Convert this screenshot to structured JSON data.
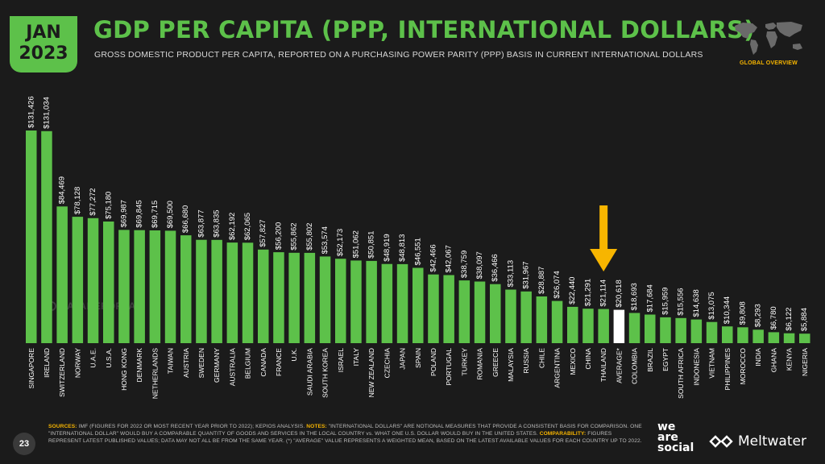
{
  "header": {
    "badge_month": "JAN",
    "badge_year": "2023",
    "title": "GDP PER CAPITA (PPP, INTERNATIONAL DOLLARS)",
    "subtitle": "GROSS DOMESTIC PRODUCT PER CAPITA, REPORTED ON A PURCHASING POWER PARITY (PPP) BASIS IN CURRENT INTERNATIONAL DOLLARS",
    "section_label": "GLOBAL OVERVIEW",
    "map_icon": "world-map-icon"
  },
  "watermark": "DATAREPORTAL",
  "colors": {
    "bar": "#5dc14a",
    "highlight_bar": "#ffffff",
    "arrow": "#f7b500",
    "accent": "#f7b500",
    "background": "#1b1b1b"
  },
  "chart_data": {
    "type": "bar",
    "categories": [
      "SINGAPORE",
      "IRELAND",
      "SWITZERLAND",
      "NORWAY",
      "U.A.E.",
      "U.S.A.",
      "HONG KONG",
      "DENMARK",
      "NETHERLANDS",
      "TAIWAN",
      "AUSTRIA",
      "SWEDEN",
      "GERMANY",
      "AUSTRALIA",
      "BELGIUM",
      "CANADA",
      "FRANCE",
      "U.K.",
      "SAUDI ARABIA",
      "SOUTH KOREA",
      "ISRAEL",
      "ITALY",
      "NEW ZEALAND",
      "CZECHIA",
      "JAPAN",
      "SPAIN",
      "POLAND",
      "PORTUGAL",
      "TURKEY",
      "ROMANIA",
      "GREECE",
      "MALAYSIA",
      "RUSSIA",
      "CHILE",
      "ARGENTINA",
      "MEXICO",
      "CHINA",
      "THAILAND",
      "AVERAGE*",
      "COLOMBIA",
      "BRAZIL",
      "EGYPT",
      "SOUTH AFRICA",
      "INDONESIA",
      "VIETNAM",
      "PHILIPPINES",
      "MOROCCO",
      "INDIA",
      "GHANA",
      "KENYA",
      "NIGERIA"
    ],
    "values": [
      131426,
      131034,
      84469,
      78128,
      77272,
      75180,
      69987,
      69845,
      69715,
      69500,
      66680,
      63877,
      63835,
      62192,
      62065,
      57827,
      56200,
      55862,
      55802,
      53574,
      52173,
      51062,
      50851,
      48919,
      48813,
      46551,
      42466,
      42067,
      38759,
      38097,
      36466,
      33113,
      31967,
      28887,
      26074,
      22440,
      21291,
      21114,
      20618,
      18693,
      17684,
      15959,
      15556,
      14638,
      13075,
      10344,
      9808,
      8293,
      6780,
      6122,
      5884
    ],
    "value_labels": [
      "$131,426",
      "$131,034",
      "$84,469",
      "$78,128",
      "$77,272",
      "$75,180",
      "$69,987",
      "$69,845",
      "$69,715",
      "$69,500",
      "$66,680",
      "$63,877",
      "$63,835",
      "$62,192",
      "$62,065",
      "$57,827",
      "$56,200",
      "$55,862",
      "$55,802",
      "$53,574",
      "$52,173",
      "$51,062",
      "$50,851",
      "$48,919",
      "$48,813",
      "$46,551",
      "$42,466",
      "$42,067",
      "$38,759",
      "$38,097",
      "$36,466",
      "$33,113",
      "$31,967",
      "$28,887",
      "$26,074",
      "$22,440",
      "$21,291",
      "$21,114",
      "$20,618",
      "$18,693",
      "$17,684",
      "$15,959",
      "$15,556",
      "$14,638",
      "$13,075",
      "$10,344",
      "$9,808",
      "$8,293",
      "$6,780",
      "$6,122",
      "$5,884"
    ],
    "highlight_category": "AVERAGE*",
    "arrow_category": "THAILAND",
    "title": "GDP PER CAPITA (PPP, INTERNATIONAL DOLLARS)",
    "xlabel": "",
    "ylabel": "",
    "grid": false
  },
  "footer": {
    "page_number": "23",
    "sources_key": "SOURCES:",
    "sources_text": " IMF (FIGURES FOR 2022 OR MOST RECENT YEAR PRIOR TO 2022); KEPIOS ANALYSIS. ",
    "notes_key": "NOTES:",
    "notes_text": " \"INTERNATIONAL DOLLARS\" ARE NOTIONAL MEASURES THAT PROVIDE A CONSISTENT BASIS FOR COMPARISON. ONE \"INTERNATIONAL DOLLAR\" WOULD BUY A COMPARABLE QUANTITY OF GOODS AND SERVICES IN THE LOCAL COUNTRY vs. WHAT ONE U.S. DOLLAR WOULD BUY IN THE UNITED STATES. ",
    "comparability_key": "COMPARABILITY:",
    "comparability_text": " FIGURES REPRESENT LATEST PUBLISHED VALUES; DATA MAY NOT ALL BE FROM THE SAME YEAR. (*) \"AVERAGE\" VALUE REPRESENTS A WEIGHTED MEAN, BASED ON THE LATEST AVAILABLE VALUES FOR EACH COUNTRY UP TO 2022."
  },
  "brands": {
    "we_are_social_l1": "we",
    "we_are_social_l2": "are",
    "we_are_social_l3": "social",
    "meltwater": "Meltwater",
    "meltwater_icon": "meltwater-logo-icon"
  }
}
